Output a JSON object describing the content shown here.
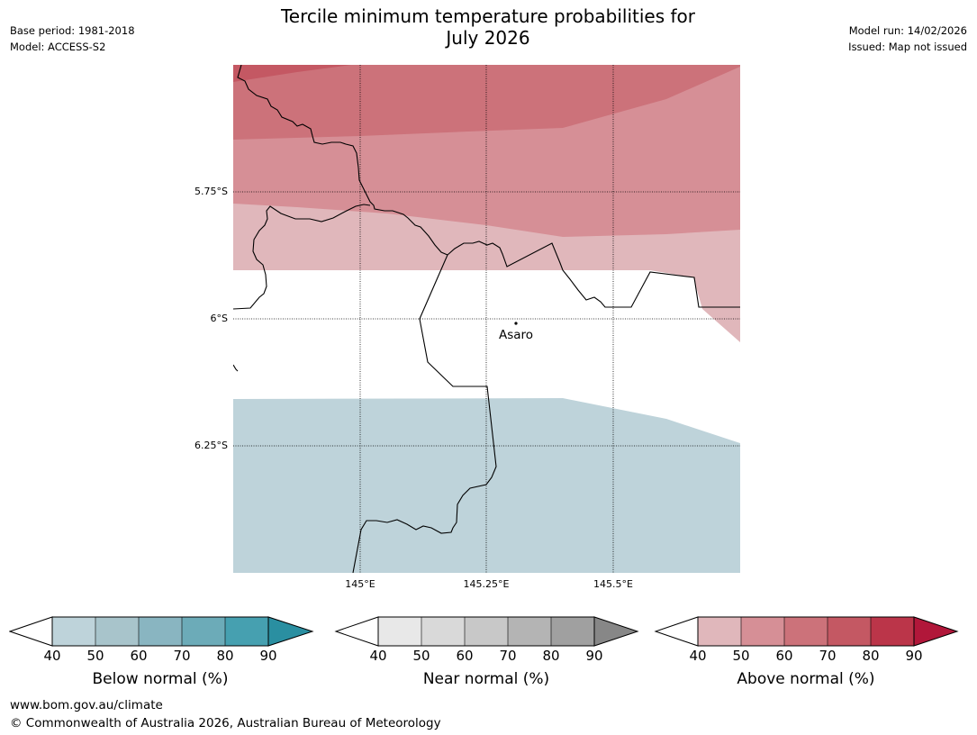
{
  "title_line1": "Tercile minimum temperature probabilities for",
  "title_line2": "July 2026",
  "meta": {
    "base_period": "Base period: 1981-2018",
    "model": "Model: ACCESS-S2",
    "model_run": "Model run: 14/02/2026",
    "issued": "Issued: Map not issued"
  },
  "map": {
    "lat_labels": [
      "5.75°S",
      "6°S",
      "6.25°S"
    ],
    "lon_labels": [
      "145°E",
      "145.25°E",
      "145.5°E"
    ],
    "town": "Asaro"
  },
  "legends": [
    {
      "name": "below",
      "title": "Below normal (%)",
      "ticks": [
        "40",
        "50",
        "60",
        "70",
        "80",
        "90"
      ],
      "colors": [
        "#ffffff",
        "#bed3da",
        "#a8c4cb",
        "#89b5c1",
        "#6cabb8",
        "#46a0b0",
        "#2a8fa1"
      ]
    },
    {
      "name": "near",
      "title": "Near normal (%)",
      "ticks": [
        "40",
        "50",
        "60",
        "70",
        "80",
        "90"
      ],
      "colors": [
        "#ffffff",
        "#e8e8e8",
        "#d9d9d9",
        "#c8c8c8",
        "#b4b4b4",
        "#a0a0a0",
        "#878787"
      ]
    },
    {
      "name": "above",
      "title": "Above normal (%)",
      "ticks": [
        "40",
        "50",
        "60",
        "70",
        "80",
        "90"
      ],
      "colors": [
        "#ffffff",
        "#e0b7bb",
        "#d68f96",
        "#cc727a",
        "#c45863",
        "#bb3549",
        "#b1173a"
      ]
    }
  ],
  "footer": {
    "url": "www.bom.gov.au/climate",
    "copyright": "© Commonwealth of Australia 2026, Australian Bureau of Meteorology"
  }
}
